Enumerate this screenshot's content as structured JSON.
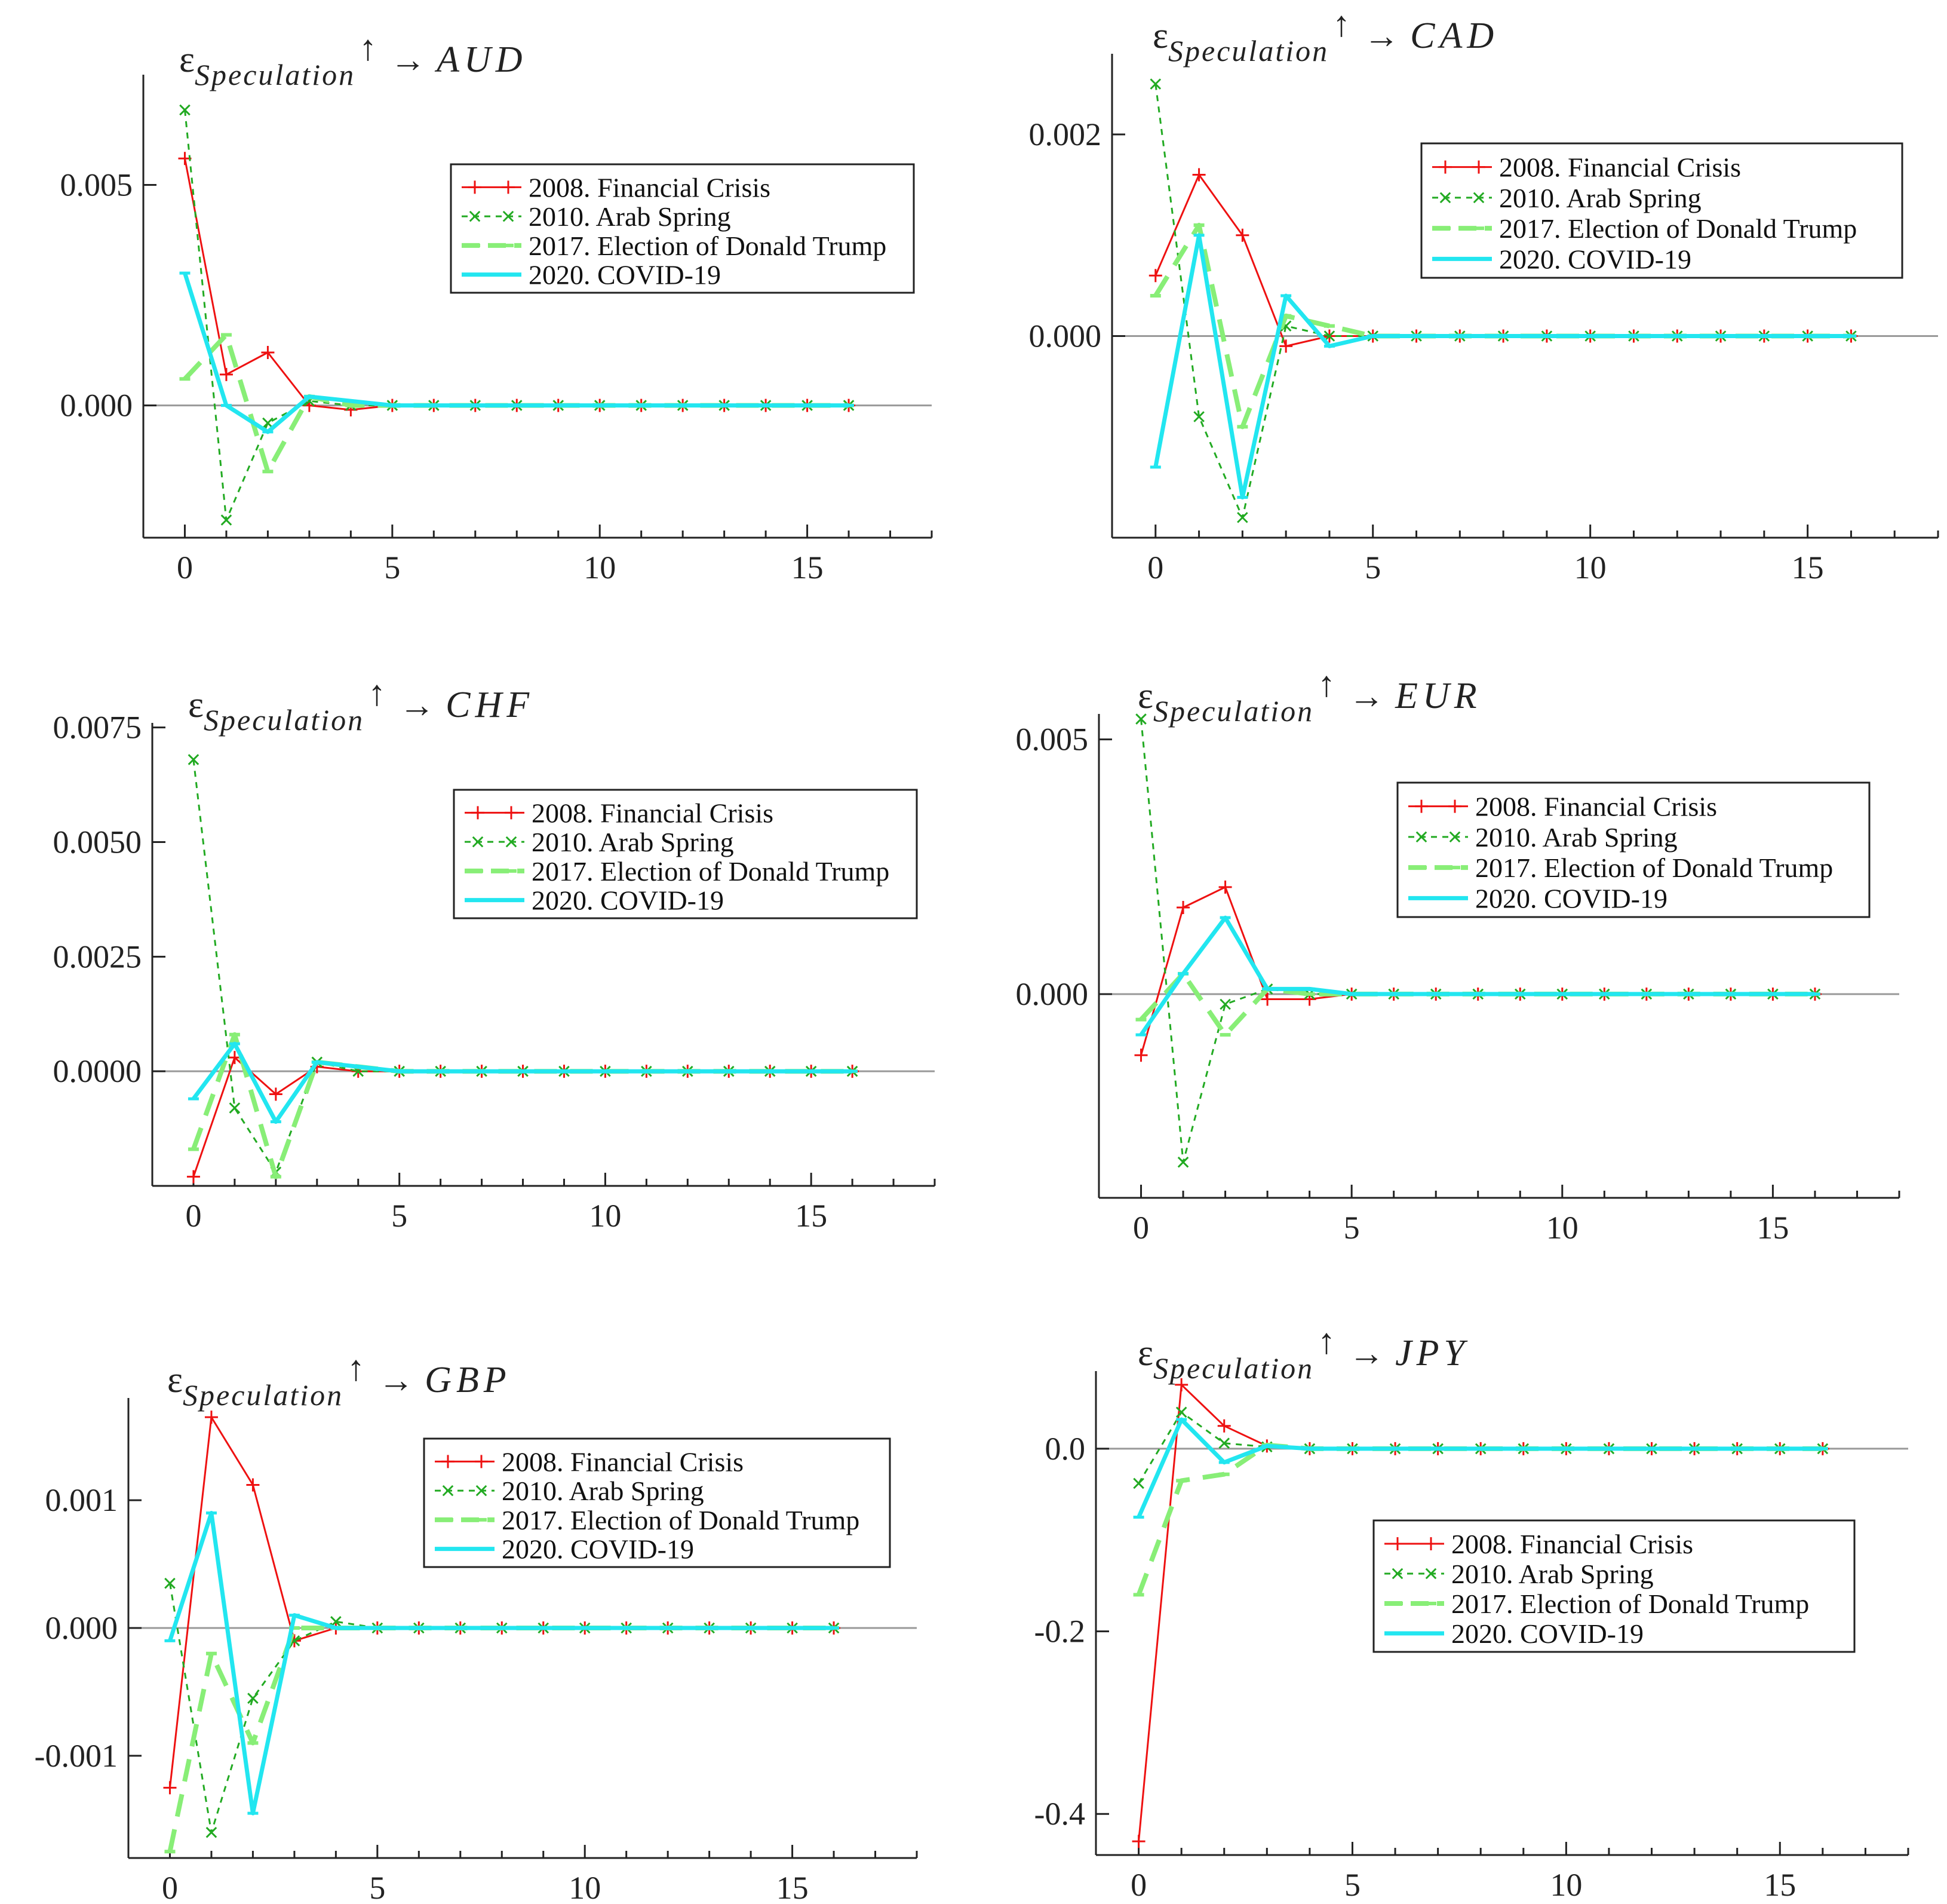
{
  "legend_labels": [
    "2008. Financial Crisis",
    "2010. Arab Spring",
    "2017. Election of Donald Trump",
    "2020. COVID-19"
  ],
  "series_colors": [
    "#ee1111",
    "#22aa22",
    "#88ee77",
    "#22e6f0"
  ],
  "title_symbol": "ε",
  "title_subscript": "Speculation",
  "title_superscript": "↑",
  "title_arrow": "→",
  "chart_data": [
    {
      "type": "line",
      "title": "εSpeculation↑ → AUD",
      "currency": "AUD",
      "x": [
        0,
        1,
        2,
        3,
        4,
        5,
        6,
        7,
        8,
        9,
        10,
        11,
        12,
        13,
        14,
        15,
        16
      ],
      "xlim": [
        -1,
        18
      ],
      "ylim": [
        -0.003,
        0.0075
      ],
      "x_ticks": [
        0,
        5,
        10,
        15
      ],
      "y_ticks": [
        0.0,
        0.005
      ],
      "y_tick_labels": [
        "0.000",
        "0.005"
      ],
      "legend_position": "top-right",
      "series": [
        {
          "name": "2008. Financial Crisis",
          "values": [
            0.0056,
            0.0007,
            0.0012,
            0.0,
            -0.0001,
            0,
            0,
            0,
            0,
            0,
            0,
            0,
            0,
            0,
            0,
            0,
            0
          ]
        },
        {
          "name": "2010. Arab Spring",
          "values": [
            0.0067,
            -0.0026,
            -0.0004,
            0.0001,
            0.0,
            0,
            0,
            0,
            0,
            0,
            0,
            0,
            0,
            0,
            0,
            0,
            0
          ]
        },
        {
          "name": "2017. Election of Donald Trump",
          "values": [
            0.0006,
            0.0016,
            -0.0015,
            0.0002,
            0.0,
            0,
            0,
            0,
            0,
            0,
            0,
            0,
            0,
            0,
            0,
            0,
            0
          ]
        },
        {
          "name": "2020. COVID-19",
          "values": [
            0.003,
            0.0,
            -0.0006,
            0.0002,
            0.0001,
            0,
            0,
            0,
            0,
            0,
            0,
            0,
            0,
            0,
            0,
            0,
            0
          ]
        }
      ]
    },
    {
      "type": "line",
      "title": "εSpeculation↑ → CAD",
      "currency": "CAD",
      "x": [
        0,
        1,
        2,
        3,
        4,
        5,
        6,
        7,
        8,
        9,
        10,
        11,
        12,
        13,
        14,
        15,
        16
      ],
      "xlim": [
        -1,
        18
      ],
      "ylim": [
        -0.002,
        0.0028
      ],
      "x_ticks": [
        0,
        5,
        10,
        15
      ],
      "y_ticks": [
        0.0,
        0.002
      ],
      "y_tick_labels": [
        "0.000",
        "0.002"
      ],
      "legend_position": "top-right",
      "series": [
        {
          "name": "2008. Financial Crisis",
          "values": [
            0.0006,
            0.0016,
            0.001,
            -0.0001,
            0.0,
            0,
            0,
            0,
            0,
            0,
            0,
            0,
            0,
            0,
            0,
            0,
            0
          ]
        },
        {
          "name": "2010. Arab Spring",
          "values": [
            0.0025,
            -0.0008,
            -0.0018,
            0.0001,
            0.0,
            0,
            0,
            0,
            0,
            0,
            0,
            0,
            0,
            0,
            0,
            0,
            0
          ]
        },
        {
          "name": "2017. Election of Donald Trump",
          "values": [
            0.0004,
            0.0011,
            -0.0009,
            0.0002,
            0.0001,
            0,
            0,
            0,
            0,
            0,
            0,
            0,
            0,
            0,
            0,
            0,
            0
          ]
        },
        {
          "name": "2020. COVID-19",
          "values": [
            -0.0013,
            0.001,
            -0.0016,
            0.0004,
            -0.0001,
            0,
            0,
            0,
            0,
            0,
            0,
            0,
            0,
            0,
            0,
            0,
            0
          ]
        }
      ]
    },
    {
      "type": "line",
      "title": "εSpeculation↑ → CHF",
      "currency": "CHF",
      "x": [
        0,
        1,
        2,
        3,
        4,
        5,
        6,
        7,
        8,
        9,
        10,
        11,
        12,
        13,
        14,
        15,
        16
      ],
      "xlim": [
        -1,
        18
      ],
      "ylim": [
        -0.0025,
        0.0076
      ],
      "x_ticks": [
        0,
        5,
        10,
        15
      ],
      "y_ticks": [
        0.0,
        0.0025,
        0.005,
        0.0075
      ],
      "y_tick_labels": [
        "0.0000",
        "0.0025",
        "0.0050",
        "0.0075"
      ],
      "legend_position": "top-right",
      "series": [
        {
          "name": "2008. Financial Crisis",
          "values": [
            -0.0023,
            0.0003,
            -0.0005,
            0.0001,
            0.0,
            0,
            0,
            0,
            0,
            0,
            0,
            0,
            0,
            0,
            0,
            0,
            0
          ]
        },
        {
          "name": "2010. Arab Spring",
          "values": [
            0.0068,
            -0.0008,
            -0.0022,
            0.0002,
            0.0,
            0,
            0,
            0,
            0,
            0,
            0,
            0,
            0,
            0,
            0,
            0,
            0
          ]
        },
        {
          "name": "2017. Election of Donald Trump",
          "values": [
            -0.0017,
            0.0008,
            -0.0023,
            0.0002,
            0.0001,
            0,
            0,
            0,
            0,
            0,
            0,
            0,
            0,
            0,
            0,
            0,
            0
          ]
        },
        {
          "name": "2020. COVID-19",
          "values": [
            -0.0006,
            0.0006,
            -0.0011,
            0.0002,
            0.0001,
            0,
            0,
            0,
            0,
            0,
            0,
            0,
            0,
            0,
            0,
            0,
            0
          ]
        }
      ]
    },
    {
      "type": "line",
      "title": "εSpeculation↑ → EUR",
      "currency": "EUR",
      "x": [
        0,
        1,
        2,
        3,
        4,
        5,
        6,
        7,
        8,
        9,
        10,
        11,
        12,
        13,
        14,
        15,
        16
      ],
      "xlim": [
        -1,
        18
      ],
      "ylim": [
        -0.004,
        0.0055
      ],
      "x_ticks": [
        0,
        5,
        10,
        15
      ],
      "y_ticks": [
        0.0,
        0.005
      ],
      "y_tick_labels": [
        "0.000",
        "0.005"
      ],
      "legend_position": "top-right",
      "series": [
        {
          "name": "2008. Financial Crisis",
          "values": [
            -0.0012,
            0.0017,
            0.0021,
            -0.0001,
            -0.0001,
            0,
            0,
            0,
            0,
            0,
            0,
            0,
            0,
            0,
            0,
            0,
            0
          ]
        },
        {
          "name": "2010. Arab Spring",
          "values": [
            0.0054,
            -0.0033,
            -0.0002,
            0.0001,
            0.0,
            0,
            0,
            0,
            0,
            0,
            0,
            0,
            0,
            0,
            0,
            0,
            0
          ]
        },
        {
          "name": "2017. Election of Donald Trump",
          "values": [
            -0.0005,
            0.0004,
            -0.0008,
            0.0001,
            0.0,
            0,
            0,
            0,
            0,
            0,
            0,
            0,
            0,
            0,
            0,
            0,
            0
          ]
        },
        {
          "name": "2020. COVID-19",
          "values": [
            -0.0008,
            0.0004,
            0.0015,
            0.0001,
            0.0001,
            0,
            0,
            0,
            0,
            0,
            0,
            0,
            0,
            0,
            0,
            0,
            0
          ]
        }
      ]
    },
    {
      "type": "line",
      "title": "εSpeculation↑ → GBP",
      "currency": "GBP",
      "x": [
        0,
        1,
        2,
        3,
        4,
        5,
        6,
        7,
        8,
        9,
        10,
        11,
        12,
        13,
        14,
        15,
        16
      ],
      "xlim": [
        -1,
        18
      ],
      "ylim": [
        -0.0018,
        0.0018
      ],
      "x_ticks": [
        0,
        5,
        10,
        15
      ],
      "y_ticks": [
        -0.001,
        0.0,
        0.001
      ],
      "y_tick_labels": [
        "-0.001",
        "0.000",
        "0.001"
      ],
      "legend_position": "top-right",
      "series": [
        {
          "name": "2008. Financial Crisis",
          "values": [
            -0.00125,
            0.00165,
            0.00112,
            -0.0001,
            0.0,
            0,
            0,
            0,
            0,
            0,
            0,
            0,
            0,
            0,
            0,
            0,
            0
          ]
        },
        {
          "name": "2010. Arab Spring",
          "values": [
            0.00035,
            -0.0016,
            -0.00055,
            -0.0001,
            5e-05,
            0,
            0,
            0,
            0,
            0,
            0,
            0,
            0,
            0,
            0,
            0,
            0
          ]
        },
        {
          "name": "2017. Election of Donald Trump",
          "values": [
            -0.00175,
            -0.0002,
            -0.0009,
            0.0,
            0.0,
            0,
            0,
            0,
            0,
            0,
            0,
            0,
            0,
            0,
            0,
            0,
            0
          ]
        },
        {
          "name": "2020. COVID-19",
          "values": [
            -0.0001,
            0.0009,
            -0.00145,
            0.0001,
            0.0,
            0,
            0,
            0,
            0,
            0,
            0,
            0,
            0,
            0,
            0,
            0,
            0
          ]
        }
      ]
    },
    {
      "type": "line",
      "title": "εSpeculation↑ → JPY",
      "currency": "JPY",
      "x": [
        0,
        1,
        2,
        3,
        4,
        5,
        6,
        7,
        8,
        9,
        10,
        11,
        12,
        13,
        14,
        15,
        16
      ],
      "xlim": [
        -1,
        18
      ],
      "ylim": [
        -0.445,
        0.085
      ],
      "x_ticks": [
        0,
        5,
        10,
        15
      ],
      "y_ticks": [
        -0.4,
        -0.2,
        0.0
      ],
      "y_tick_labels": [
        "-0.4",
        "-0.2",
        "0.0"
      ],
      "legend_position": "center-right",
      "series": [
        {
          "name": "2008. Financial Crisis",
          "values": [
            -0.43,
            0.07,
            0.025,
            0.003,
            0.0,
            0,
            0,
            0,
            0,
            0,
            0,
            0,
            0,
            0,
            0,
            0,
            0
          ]
        },
        {
          "name": "2010. Arab Spring",
          "values": [
            -0.038,
            0.04,
            0.006,
            0.002,
            0.0,
            0,
            0,
            0,
            0,
            0,
            0,
            0,
            0,
            0,
            0,
            0,
            0
          ]
        },
        {
          "name": "2017. Election of Donald Trump",
          "values": [
            -0.16,
            -0.035,
            -0.028,
            0.004,
            0.0,
            0,
            0,
            0,
            0,
            0,
            0,
            0,
            0,
            0,
            0,
            0,
            0
          ]
        },
        {
          "name": "2020. COVID-19",
          "values": [
            -0.075,
            0.032,
            -0.015,
            0.003,
            0.0,
            0,
            0,
            0,
            0,
            0,
            0,
            0,
            0,
            0,
            0,
            0,
            0
          ]
        }
      ]
    }
  ]
}
